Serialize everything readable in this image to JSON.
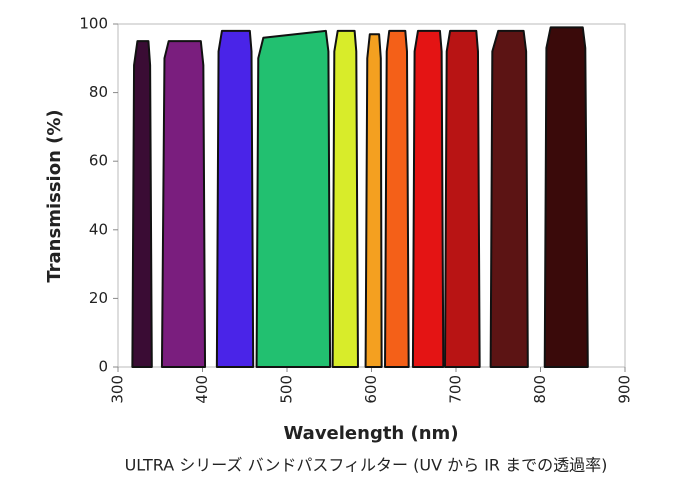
{
  "chart_data": {
    "type": "area",
    "title": "ULTRA シリーズ バンドパスフィルター (UV から IR までの透過率)",
    "x_label": "Wavelength (nm)",
    "y_label": "Transmission (%)",
    "xlim": [
      300,
      900
    ],
    "xticks": [
      300,
      400,
      500,
      600,
      700,
      800,
      900
    ],
    "ylim": [
      0,
      100
    ],
    "yticks": [
      0,
      20,
      40,
      60,
      80,
      100
    ],
    "series": [
      {
        "color": "#3a0c34",
        "x": [
          317,
          319,
          323,
          336,
          338,
          340
        ],
        "values": [
          0,
          88,
          95,
          95,
          88,
          0
        ]
      },
      {
        "color": "#7a1e7e",
        "x": [
          352,
          355,
          360,
          398,
          401,
          403
        ],
        "values": [
          0,
          90,
          95,
          95,
          88,
          0
        ]
      },
      {
        "color": "#4a24e8",
        "x": [
          417,
          419,
          423,
          456,
          458,
          460
        ],
        "values": [
          0,
          92,
          98,
          98,
          92,
          0
        ]
      },
      {
        "color": "#22c070",
        "x": [
          464,
          466,
          472,
          546,
          549,
          551
        ],
        "values": [
          0,
          90,
          96,
          98,
          92,
          0
        ]
      },
      {
        "color": "#d8ec2a",
        "x": [
          554,
          556,
          560,
          580,
          582,
          584
        ],
        "values": [
          0,
          92,
          98,
          98,
          92,
          0
        ]
      },
      {
        "color": "#f4a020",
        "x": [
          593,
          595,
          598,
          609,
          611,
          612
        ],
        "values": [
          0,
          90,
          97,
          97,
          90,
          0
        ]
      },
      {
        "color": "#f46018",
        "x": [
          616,
          618,
          621,
          640,
          642,
          644
        ],
        "values": [
          0,
          92,
          98,
          98,
          92,
          0
        ]
      },
      {
        "color": "#e41414",
        "x": [
          649,
          651,
          655,
          681,
          683,
          685
        ],
        "values": [
          0,
          92,
          98,
          98,
          92,
          0
        ]
      },
      {
        "color": "#b81414",
        "x": [
          687,
          689,
          693,
          724,
          726,
          728
        ],
        "values": [
          0,
          92,
          98,
          98,
          92,
          0
        ]
      },
      {
        "color": "#5c1414",
        "x": [
          741,
          743,
          750,
          780,
          783,
          785
        ],
        "values": [
          0,
          92,
          98,
          98,
          92,
          0
        ]
      },
      {
        "color": "#3a0a0a",
        "x": [
          805,
          807,
          812,
          850,
          853,
          856
        ],
        "values": [
          0,
          93,
          99,
          99,
          93,
          0
        ]
      }
    ]
  }
}
